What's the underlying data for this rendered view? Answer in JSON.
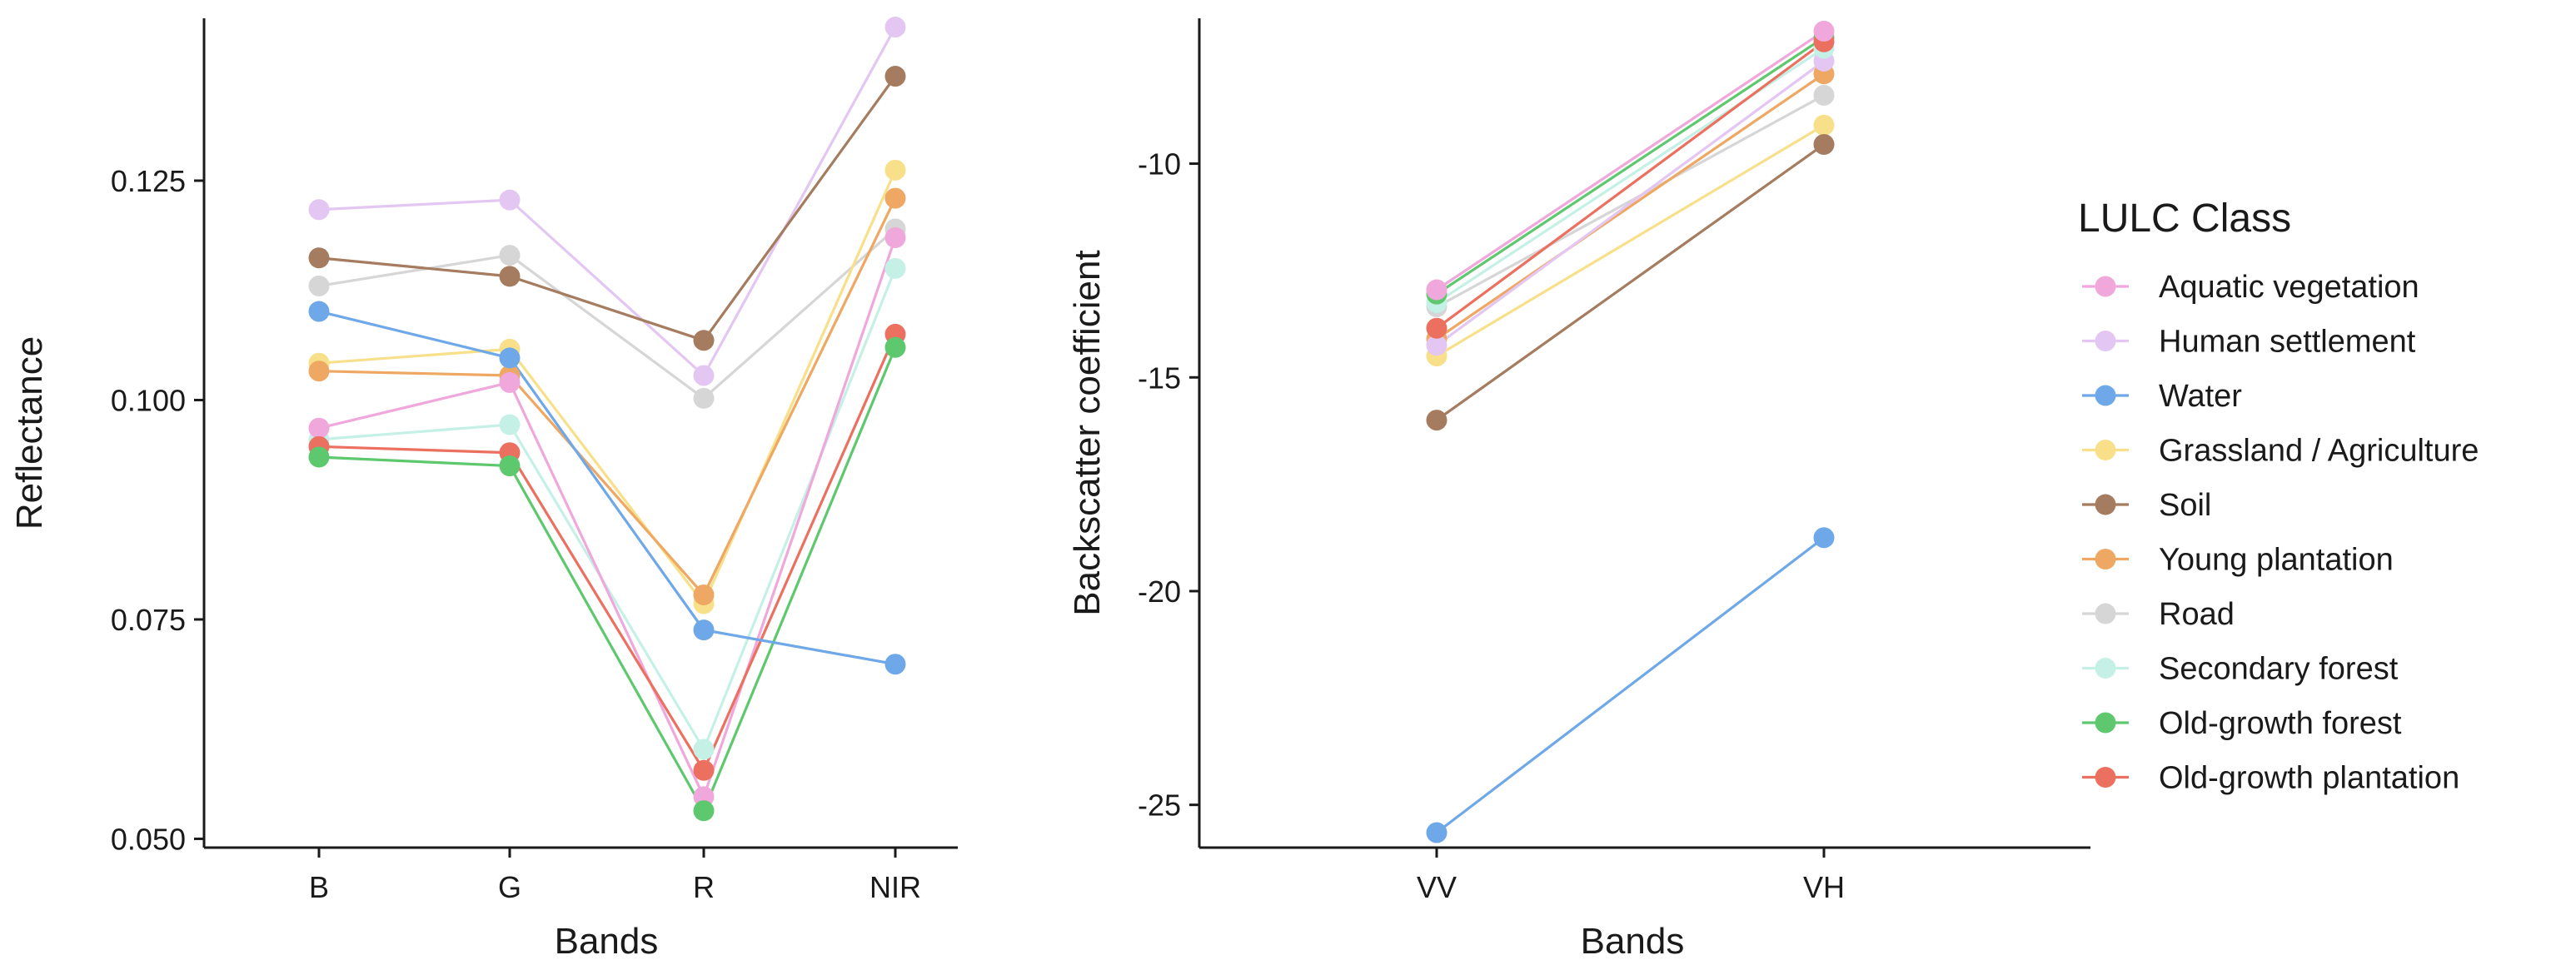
{
  "legend": {
    "title": "LULC Class"
  },
  "colors": {
    "Aquatic vegetation": "#f0a8dc",
    "Human settlement": "#e4c6f3",
    "Water": "#6fa8e8",
    "Grassland / Agriculture": "#f8e08a",
    "Soil": "#a57c5f",
    "Young plantation": "#eea863",
    "Road": "#d6d6d6",
    "Secondary forest": "#c4f0e6",
    "Old-growth forest": "#5ec86e",
    "Old-growth plantation": "#ec7060"
  },
  "chart_data": [
    {
      "type": "line",
      "title": "",
      "xlabel": "Bands",
      "ylabel": "Reflectance",
      "categories": [
        "B",
        "G",
        "R",
        "NIR"
      ],
      "ylim": [
        0.049,
        0.1435
      ],
      "yticks": [
        0.05,
        0.075,
        0.1,
        0.125
      ],
      "ytick_labels": [
        "0.050",
        "0.075",
        "0.100",
        "0.125"
      ],
      "grid": false,
      "series": [
        {
          "name": "Road",
          "values": [
            0.113,
            0.1165,
            0.1002,
            0.1195
          ]
        },
        {
          "name": "Secondary forest",
          "values": [
            0.0955,
            0.0972,
            0.0602,
            0.115
          ]
        },
        {
          "name": "Grassland / Agriculture",
          "values": [
            0.1042,
            0.1058,
            0.0768,
            0.1262
          ]
        },
        {
          "name": "Young plantation",
          "values": [
            0.1033,
            0.1028,
            0.0778,
            0.123
          ]
        },
        {
          "name": "Human settlement",
          "values": [
            0.1217,
            0.1228,
            0.1028,
            0.1425
          ]
        },
        {
          "name": "Aquatic vegetation",
          "values": [
            0.0968,
            0.102,
            0.0548,
            0.1185
          ]
        },
        {
          "name": "Old-growth plantation",
          "values": [
            0.0947,
            0.094,
            0.0578,
            0.1075
          ]
        },
        {
          "name": "Old-growth forest",
          "values": [
            0.0935,
            0.0925,
            0.0532,
            0.106
          ]
        },
        {
          "name": "Water",
          "values": [
            0.1101,
            0.1048,
            0.0738,
            0.0699
          ]
        },
        {
          "name": "Soil",
          "values": [
            0.1162,
            0.1141,
            0.1068,
            0.1369
          ]
        }
      ]
    },
    {
      "type": "line",
      "title": "",
      "xlabel": "Bands",
      "ylabel": "Backscatter coefficient",
      "categories": [
        "VV",
        "VH"
      ],
      "ylim": [
        -26.0,
        -6.6
      ],
      "yticks": [
        -25,
        -20,
        -15,
        -10
      ],
      "ytick_labels": [
        "-25",
        "-20",
        "-15",
        "-10"
      ],
      "grid": false,
      "series": [
        {
          "name": "Water",
          "values": [
            -25.65,
            -18.75
          ]
        },
        {
          "name": "Road",
          "values": [
            -13.35,
            -8.4
          ]
        },
        {
          "name": "Grassland / Agriculture",
          "values": [
            -14.5,
            -9.1
          ]
        },
        {
          "name": "Young plantation",
          "values": [
            -14.1,
            -7.9
          ]
        },
        {
          "name": "Human settlement",
          "values": [
            -14.25,
            -7.6
          ]
        },
        {
          "name": "Secondary forest",
          "values": [
            -13.25,
            -7.3
          ]
        },
        {
          "name": "Soil",
          "values": [
            -16.0,
            -9.55
          ]
        },
        {
          "name": "Old-growth forest",
          "values": [
            -13.05,
            -7.05
          ]
        },
        {
          "name": "Old-growth plantation",
          "values": [
            -13.85,
            -7.15
          ]
        },
        {
          "name": "Aquatic vegetation",
          "values": [
            -12.95,
            -6.9
          ]
        }
      ]
    }
  ],
  "legend_order": [
    "Aquatic vegetation",
    "Human settlement",
    "Water",
    "Grassland / Agriculture",
    "Soil",
    "Young plantation",
    "Road",
    "Secondary forest",
    "Old-growth forest",
    "Old-growth plantation"
  ]
}
